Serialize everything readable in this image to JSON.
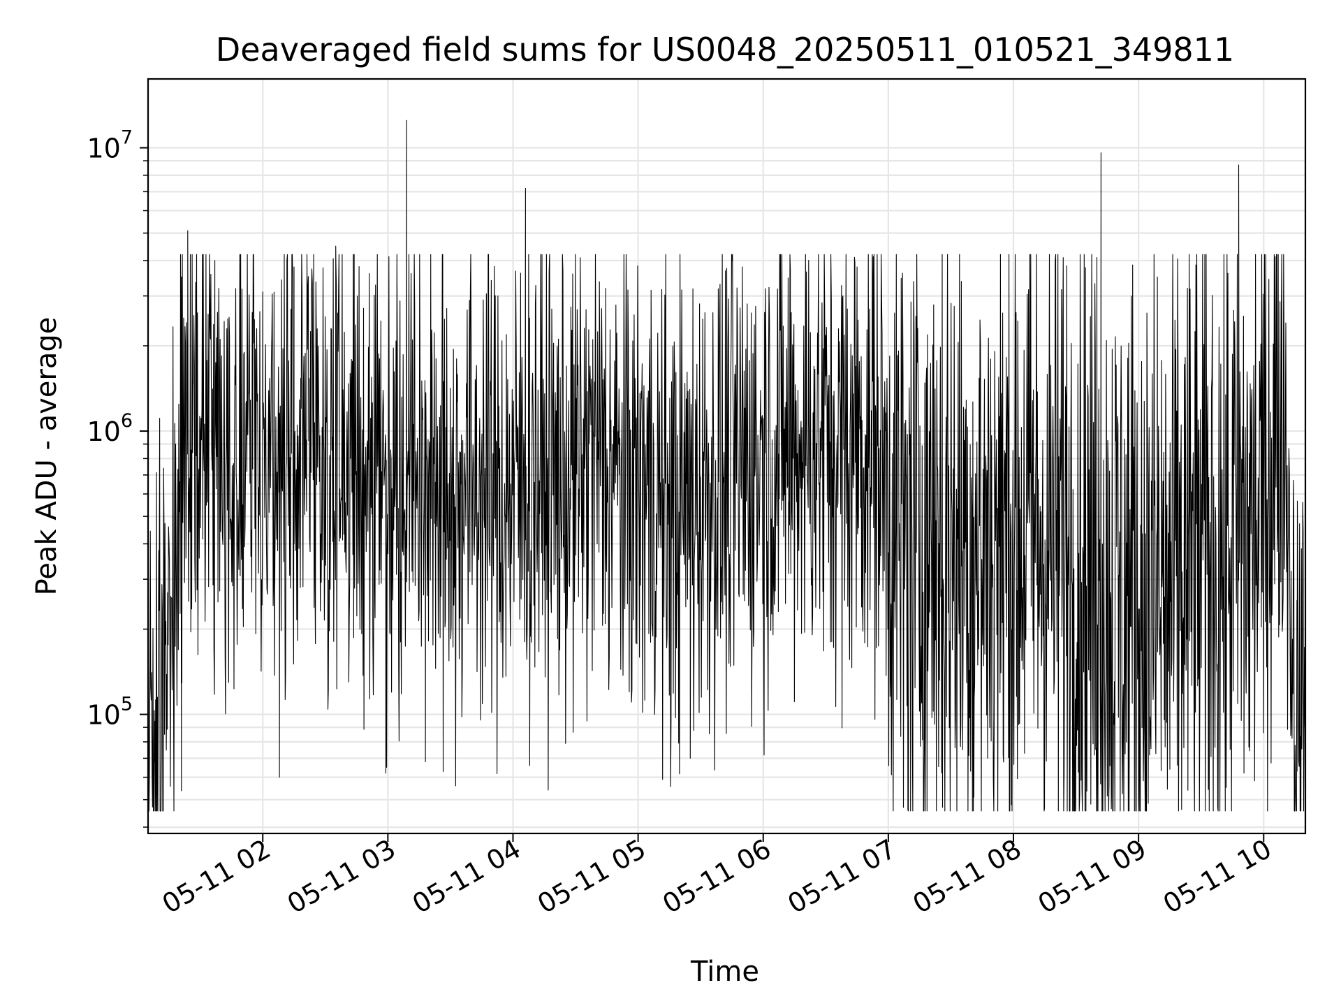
{
  "chart_data": {
    "type": "line",
    "title": "Deaveraged field sums for US0048_20250511_010521_349811",
    "xlabel": "Time",
    "ylabel": "Peak ADU - average",
    "yscale": "log",
    "grid": true,
    "legend": "none",
    "xlim": [
      "2025-05-11 01:05",
      "2025-05-11 10:20"
    ],
    "ylim": [
      38000,
      17500000
    ],
    "x_ticks": [
      "05-11 02",
      "05-11 03",
      "05-11 04",
      "05-11 05",
      "05-11 06",
      "05-11 07",
      "05-11 08",
      "05-11 09",
      "05-11 10"
    ],
    "y_ticks": [
      {
        "value": 100000,
        "base": "10",
        "exponent": "5"
      },
      {
        "value": 1000000,
        "base": "10",
        "exponent": "6"
      },
      {
        "value": 10000000,
        "base": "10",
        "exponent": "7"
      }
    ],
    "series": [
      {
        "color": "#000000",
        "x": [
          "01:05",
          "01:09",
          "01:13",
          "01:17",
          "01:21",
          "01:25",
          "01:30",
          "01:35",
          "01:40",
          "01:45",
          "01:50",
          "01:55",
          "02:00",
          "02:05",
          "02:10",
          "02:15",
          "02:20",
          "02:25",
          "02:30",
          "02:35",
          "02:40",
          "02:45",
          "02:50",
          "02:55",
          "03:00",
          "03:05",
          "03:10",
          "03:15",
          "03:20",
          "03:25",
          "03:30",
          "03:35",
          "03:40",
          "03:45",
          "03:50",
          "03:55",
          "04:00",
          "04:05",
          "04:10",
          "04:15",
          "04:20",
          "04:25",
          "04:30",
          "04:35",
          "04:40",
          "04:45",
          "04:50",
          "04:55",
          "05:00",
          "05:05",
          "05:10",
          "05:15",
          "05:20",
          "05:25",
          "05:30",
          "05:35",
          "05:40",
          "05:45",
          "05:50",
          "05:55",
          "06:00",
          "06:05",
          "06:10",
          "06:15",
          "06:20",
          "06:25",
          "06:30",
          "06:35",
          "06:40",
          "06:45",
          "06:50",
          "06:55",
          "07:00",
          "07:05",
          "07:10",
          "07:15",
          "07:20",
          "07:25",
          "07:30",
          "07:35",
          "07:40",
          "07:45",
          "07:50",
          "07:55",
          "08:00",
          "08:05",
          "08:10",
          "08:15",
          "08:20",
          "08:25",
          "08:30",
          "08:35",
          "08:40",
          "08:45",
          "08:50",
          "08:55",
          "09:00",
          "09:05",
          "09:10",
          "09:15",
          "09:20",
          "09:25",
          "09:30",
          "09:35",
          "09:40",
          "09:45",
          "09:50",
          "09:55",
          "10:00",
          "10:05",
          "10:10",
          "10:15",
          "10:20"
        ],
        "y": [
          120000,
          90000,
          190000,
          330000,
          800000,
          1000000,
          950000,
          880000,
          820000,
          790000,
          860000,
          910000,
          850000,
          800000,
          780000,
          900000,
          960000,
          1000000,
          830000,
          750000,
          720000,
          760000,
          820000,
          780000,
          700000,
          740000,
          860000,
          800000,
          690000,
          600000,
          590000,
          630000,
          690000,
          650000,
          610000,
          580000,
          620000,
          680000,
          720000,
          700000,
          650000,
          660000,
          700000,
          760000,
          800000,
          740000,
          690000,
          650000,
          620000,
          640000,
          560000,
          470000,
          520000,
          580000,
          610000,
          630000,
          650000,
          690000,
          720000,
          770000,
          820000,
          880000,
          900000,
          910000,
          920000,
          930000,
          900000,
          860000,
          840000,
          890000,
          920000,
          870000,
          600000,
          380000,
          350000,
          380000,
          420000,
          430000,
          420000,
          390000,
          360000,
          380000,
          410000,
          430000,
          460000,
          470000,
          440000,
          410000,
          400000,
          380000,
          360000,
          330000,
          300000,
          270000,
          250000,
          260000,
          240000,
          230000,
          250000,
          270000,
          300000,
          320000,
          330000,
          350000,
          380000,
          400000,
          420000,
          450000,
          600000,
          1050000,
          1150000,
          110000,
          100000
        ],
        "spikes": [
          {
            "x": "01:21",
            "y": 3500000
          },
          {
            "x": "01:24",
            "y": 5100000
          },
          {
            "x": "01:37",
            "y": 4000000
          },
          {
            "x": "02:00",
            "y": 3100000
          },
          {
            "x": "02:15",
            "y": 3800000
          },
          {
            "x": "02:35",
            "y": 4500000
          },
          {
            "x": "03:09",
            "y": 12500000
          },
          {
            "x": "04:06",
            "y": 7200000
          },
          {
            "x": "05:50",
            "y": 3800000
          },
          {
            "x": "06:13",
            "y": 3700000
          },
          {
            "x": "06:45",
            "y": 3800000
          },
          {
            "x": "08:40",
            "y": 4100000
          },
          {
            "x": "08:42",
            "y": 9600000
          },
          {
            "x": "09:09",
            "y": 3500000
          },
          {
            "x": "09:48",
            "y": 8700000
          }
        ],
        "dips": [
          {
            "x": "01:08",
            "y": 68000
          },
          {
            "x": "02:08",
            "y": 60000
          },
          {
            "x": "02:59",
            "y": 62000
          },
          {
            "x": "03:18",
            "y": 68000
          },
          {
            "x": "04:08",
            "y": 66000
          },
          {
            "x": "05:25",
            "y": 70000
          },
          {
            "x": "07:26",
            "y": 47000
          },
          {
            "x": "07:41",
            "y": 51000
          },
          {
            "x": "07:59",
            "y": 48000
          },
          {
            "x": "08:47",
            "y": 52000
          },
          {
            "x": "09:00",
            "y": 50000
          },
          {
            "x": "09:15",
            "y": 64000
          },
          {
            "x": "10:16",
            "y": 63000
          }
        ]
      }
    ]
  }
}
